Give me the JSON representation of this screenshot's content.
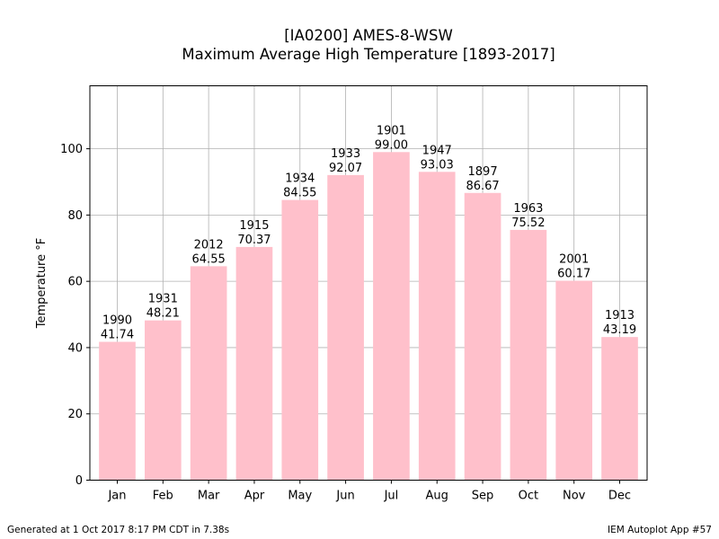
{
  "chart_data": {
    "type": "bar",
    "title_lines": [
      "[IA0200] AMES-8-WSW",
      "Maximum Average High Temperature [1893-2017]"
    ],
    "xlabel": "",
    "ylabel": "Temperature °F",
    "ylim": [
      0,
      119
    ],
    "yticks": [
      0,
      20,
      40,
      60,
      80,
      100
    ],
    "grid": true,
    "bar_color": "#ffc0cb",
    "categories": [
      "Jan",
      "Feb",
      "Mar",
      "Apr",
      "May",
      "Jun",
      "Jul",
      "Aug",
      "Sep",
      "Oct",
      "Nov",
      "Dec"
    ],
    "values": [
      41.74,
      48.21,
      64.55,
      70.37,
      84.55,
      92.07,
      99.0,
      93.03,
      86.67,
      75.52,
      60.17,
      43.19
    ],
    "value_labels": [
      "41.74",
      "48.21",
      "64.55",
      "70.37",
      "84.55",
      "92.07",
      "99.00",
      "93.03",
      "86.67",
      "75.52",
      "60.17",
      "43.19"
    ],
    "years": [
      "1990",
      "1931",
      "2012",
      "1915",
      "1934",
      "1933",
      "1901",
      "1947",
      "1897",
      "1963",
      "2001",
      "1913"
    ]
  },
  "footer": {
    "left": "Generated at 1 Oct 2017 8:17 PM CDT in 7.38s",
    "right": "IEM Autoplot App #57"
  }
}
